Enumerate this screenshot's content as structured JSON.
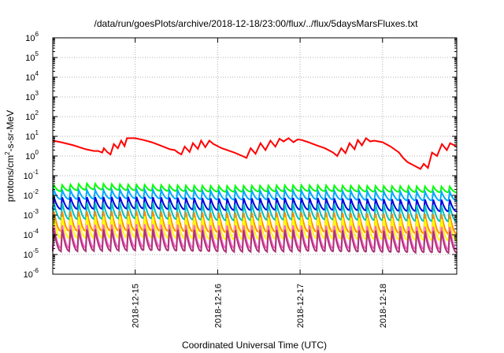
{
  "chart_data": {
    "type": "line",
    "title": "/data/run/goesPlots/archive/2018-12-18/23:00/flux/../flux/5daysMarsFluxes.txt",
    "xlabel": "Coordinated Universal Time (UTC)",
    "ylabel": "protons/cm2-s-sr-MeV",
    "ylabel_base": "protons/cm",
    "ylabel_sup": "2",
    "ylabel_rest": "-s-sr-MeV",
    "yscale": "log",
    "ylim": [
      1e-06,
      1000000.0
    ],
    "xlim": [
      0,
      4.9
    ],
    "x_ticks": [
      {
        "label": "2018-12-15",
        "x": 1
      },
      {
        "label": "2018-12-16",
        "x": 2
      },
      {
        "label": "2018-12-17",
        "x": 3
      },
      {
        "label": "2018-12-18",
        "x": 4
      }
    ],
    "y_ticks": [
      {
        "base": "10",
        "exp": "-6",
        "value": 1e-06
      },
      {
        "base": "10",
        "exp": "-5",
        "value": 1e-05
      },
      {
        "base": "10",
        "exp": "-4",
        "value": 0.0001
      },
      {
        "base": "10",
        "exp": "-3",
        "value": 0.001
      },
      {
        "base": "10",
        "exp": "-2",
        "value": 0.01
      },
      {
        "base": "10",
        "exp": "-1",
        "value": 0.1
      },
      {
        "base": "10",
        "exp": "0",
        "value": 1
      },
      {
        "base": "10",
        "exp": "1",
        "value": 10
      },
      {
        "base": "10",
        "exp": "2",
        "value": 100
      },
      {
        "base": "10",
        "exp": "3",
        "value": 1000
      },
      {
        "base": "10",
        "exp": "4",
        "value": 10000
      },
      {
        "base": "10",
        "exp": "5",
        "value": 100000
      },
      {
        "base": "10",
        "exp": "6",
        "value": 1000000
      }
    ],
    "grid": true,
    "series": [
      {
        "color": "#ff0000",
        "points": [
          [
            0.0,
            6.0
          ],
          [
            0.1,
            5.0
          ],
          [
            0.25,
            3.5
          ],
          [
            0.4,
            2.2
          ],
          [
            0.5,
            1.8
          ],
          [
            0.55,
            1.8
          ],
          [
            0.6,
            1.5
          ],
          [
            0.62,
            2.5
          ],
          [
            0.66,
            1.6
          ],
          [
            0.7,
            1.2
          ],
          [
            0.74,
            4.0
          ],
          [
            0.79,
            2.5
          ],
          [
            0.83,
            6.0
          ],
          [
            0.87,
            3.2
          ],
          [
            0.9,
            8.0
          ],
          [
            1.0,
            8.0
          ],
          [
            1.1,
            6.5
          ],
          [
            1.2,
            5.0
          ],
          [
            1.3,
            3.5
          ],
          [
            1.42,
            2.2
          ],
          [
            1.48,
            2.0
          ],
          [
            1.52,
            1.5
          ],
          [
            1.56,
            1.2
          ],
          [
            1.6,
            3.0
          ],
          [
            1.66,
            1.6
          ],
          [
            1.7,
            4.5
          ],
          [
            1.76,
            2.3
          ],
          [
            1.8,
            6.0
          ],
          [
            1.85,
            2.8
          ],
          [
            1.9,
            6.0
          ],
          [
            1.95,
            4.0
          ],
          [
            2.05,
            2.5
          ],
          [
            2.2,
            1.5
          ],
          [
            2.3,
            1.0
          ],
          [
            2.35,
            0.8
          ],
          [
            2.4,
            2.5
          ],
          [
            2.46,
            1.3
          ],
          [
            2.52,
            4.5
          ],
          [
            2.58,
            2.0
          ],
          [
            2.64,
            6.0
          ],
          [
            2.7,
            3.0
          ],
          [
            2.75,
            7.5
          ],
          [
            2.8,
            5.5
          ],
          [
            2.86,
            8.0
          ],
          [
            2.92,
            5.0
          ],
          [
            2.97,
            7.0
          ],
          [
            3.02,
            6.5
          ],
          [
            3.1,
            5.0
          ],
          [
            3.2,
            3.5
          ],
          [
            3.3,
            2.5
          ],
          [
            3.4,
            1.5
          ],
          [
            3.45,
            1.0
          ],
          [
            3.5,
            2.5
          ],
          [
            3.55,
            1.4
          ],
          [
            3.6,
            4.5
          ],
          [
            3.66,
            2.2
          ],
          [
            3.7,
            6.5
          ],
          [
            3.75,
            3.5
          ],
          [
            3.8,
            8.0
          ],
          [
            3.85,
            5.5
          ],
          [
            3.9,
            6.0
          ],
          [
            4.0,
            5.0
          ],
          [
            4.1,
            3.0
          ],
          [
            4.2,
            1.5
          ],
          [
            4.25,
            0.8
          ],
          [
            4.3,
            0.5
          ],
          [
            4.4,
            0.3
          ],
          [
            4.46,
            0.22
          ],
          [
            4.5,
            0.4
          ],
          [
            4.55,
            0.25
          ],
          [
            4.6,
            1.5
          ],
          [
            4.66,
            1.0
          ],
          [
            4.72,
            4.0
          ],
          [
            4.78,
            2.0
          ],
          [
            4.82,
            4.5
          ],
          [
            4.9,
            3.0
          ]
        ]
      },
      {
        "color": "#00ff00",
        "period": 0.1,
        "start_offset": 0.0,
        "peak": 0.035,
        "trough": 0.018,
        "shape": "sawtooth",
        "peak_curve": [
          [
            0.0,
            0.032
          ],
          [
            0.4,
            0.04
          ],
          [
            1.0,
            0.035
          ],
          [
            2.0,
            0.03
          ],
          [
            3.0,
            0.033
          ],
          [
            4.0,
            0.03
          ],
          [
            4.9,
            0.028
          ]
        ],
        "trough_ratio": 0.5
      },
      {
        "color": "#00aaff",
        "period": 0.1,
        "start_offset": 0.0,
        "shape": "sawtooth",
        "peak_curve": [
          [
            0.0,
            0.018
          ],
          [
            1.0,
            0.02
          ],
          [
            2.0,
            0.017
          ],
          [
            3.0,
            0.018
          ],
          [
            4.0,
            0.016
          ],
          [
            4.9,
            0.015
          ]
        ],
        "trough_ratio": 0.35
      },
      {
        "color": "#0000e0",
        "period": 0.1,
        "start_offset": 0.0,
        "shape": "sawtooth",
        "peak_curve": [
          [
            0.0,
            0.008
          ],
          [
            1.0,
            0.0085
          ],
          [
            2.0,
            0.007
          ],
          [
            3.0,
            0.0075
          ],
          [
            4.0,
            0.0065
          ],
          [
            4.9,
            0.006
          ]
        ],
        "trough_ratio": 0.25
      },
      {
        "color": "#00bfbf",
        "period": 0.1,
        "start_offset": 0.0,
        "shape": "sawtooth",
        "peak_curve": [
          [
            0.0,
            0.004
          ],
          [
            1.0,
            0.0045
          ],
          [
            2.0,
            0.0035
          ],
          [
            3.0,
            0.004
          ],
          [
            4.0,
            0.0035
          ],
          [
            4.9,
            0.003
          ]
        ],
        "trough_ratio": 0.15
      },
      {
        "color": "#ff8c00",
        "period": 0.1,
        "start_offset": 0.0,
        "shape": "sawtooth",
        "peak_curve": [
          [
            0.0,
            0.0015
          ],
          [
            1.0,
            0.0016
          ],
          [
            2.0,
            0.0013
          ],
          [
            3.0,
            0.0014
          ],
          [
            4.0,
            0.0012
          ],
          [
            4.9,
            0.0011
          ]
        ],
        "trough_ratio": 0.1
      },
      {
        "color": "#ffff00",
        "period": 0.1,
        "start_offset": 0.0,
        "shape": "sawtooth",
        "peak_curve": [
          [
            0.0,
            0.0008
          ],
          [
            1.0,
            0.0009
          ],
          [
            2.0,
            0.0007
          ],
          [
            3.0,
            0.0008
          ],
          [
            4.0,
            0.0007
          ],
          [
            4.9,
            0.0006
          ]
        ],
        "trough_ratio": 0.08
      },
      {
        "color": "#ff66cc",
        "period": 0.1,
        "start_offset": 0.0,
        "shape": "sawtooth",
        "peak_curve": [
          [
            0.0,
            0.0003
          ],
          [
            1.0,
            0.00035
          ],
          [
            2.0,
            0.0003
          ],
          [
            3.0,
            0.0003
          ],
          [
            4.0,
            0.00028
          ],
          [
            4.9,
            0.00025
          ]
        ],
        "trough_ratio": 0.07
      },
      {
        "color": "#aa3377",
        "period": 0.1,
        "start_offset": 0.0,
        "shape": "sawtooth",
        "peak_curve": [
          [
            0.0,
            0.00018
          ],
          [
            1.0,
            0.0002
          ],
          [
            2.0,
            0.00017
          ],
          [
            3.0,
            0.00018
          ],
          [
            4.0,
            0.00016
          ],
          [
            4.9,
            0.00015
          ]
        ],
        "trough_ratio": 0.08
      }
    ]
  }
}
